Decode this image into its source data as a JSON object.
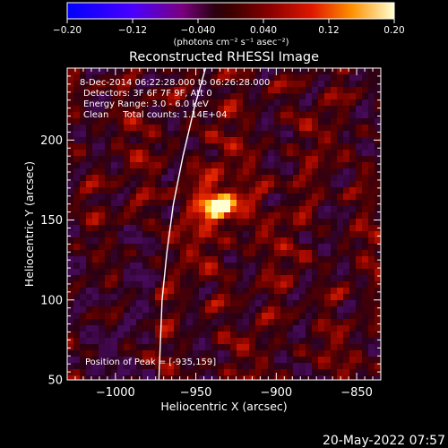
{
  "colorbar": {
    "ticks": [
      "−0.20",
      "−0.12",
      "−0.040",
      "0.040",
      "0.12",
      "0.20"
    ],
    "unit_label": "(photons cm⁻² s⁻¹ asec⁻²)"
  },
  "chart_data": {
    "type": "heatmap",
    "title": "Reconstructed RHESSI Image",
    "xlabel": "Heliocentric X (arcsec)",
    "ylabel": "Heliocentric Y (arcsec)",
    "xlim": [
      -1030,
      -835
    ],
    "ylim": [
      50,
      245
    ],
    "xticks": [
      -1000,
      -950,
      -900,
      -850
    ],
    "xtick_labels": [
      "−1000",
      "−950",
      "−900",
      "−850"
    ],
    "yticks": [
      50,
      100,
      150,
      200
    ],
    "ytick_labels": [
      "50",
      "100",
      "150",
      "200"
    ],
    "colorscale_range": [
      -0.2,
      0.2
    ],
    "peak": {
      "x": -935,
      "y": 159
    },
    "limb_curve_x": [
      -973,
      -971,
      -968,
      -964,
      -958,
      -951,
      -944
    ],
    "limb_curve_y": [
      50,
      100,
      130,
      160,
      190,
      220,
      245
    ],
    "annotations": [
      "8-Dec-2014 06:22:28.000 to 06:26:28.000",
      "Detectors: 3F 6F 7F 9F, Att 0",
      "Energy Range: 3.0 - 6.0 keV",
      "Clean     Total counts: 1.14E+04",
      "Position of Peak = [-935,159]"
    ]
  },
  "footer": {
    "timestamp": "20-May-2022 07:57"
  }
}
